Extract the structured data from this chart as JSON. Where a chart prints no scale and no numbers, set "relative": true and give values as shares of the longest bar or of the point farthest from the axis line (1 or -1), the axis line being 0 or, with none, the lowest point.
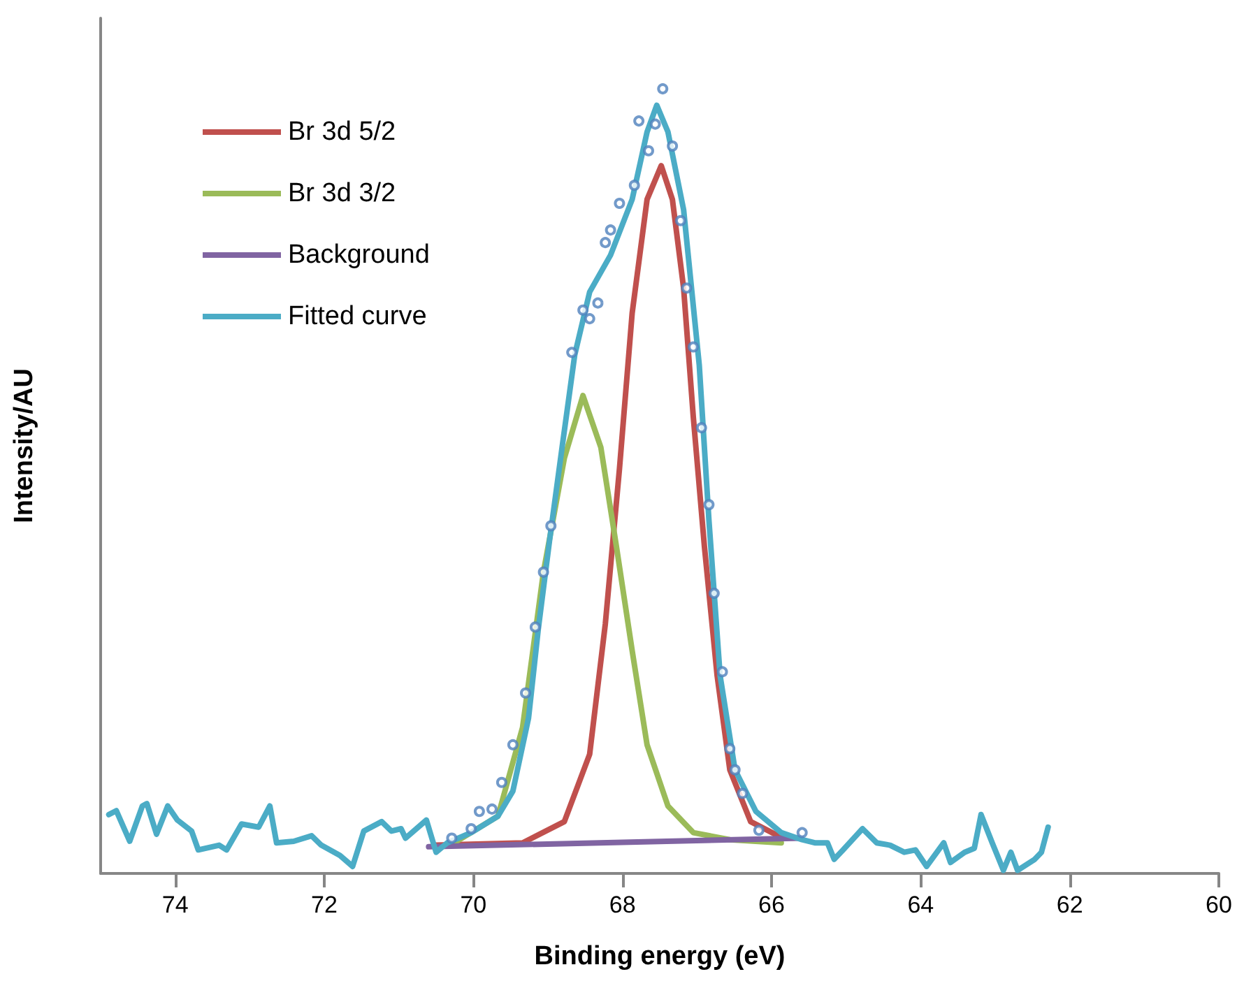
{
  "chart_data": {
    "type": "line",
    "relative": true,
    "xlabel": "Binding energy (eV)",
    "ylabel": "Intensity/AU",
    "xlim": [
      75,
      60
    ],
    "xticks": [
      74,
      72,
      70,
      68,
      66,
      64,
      62,
      60
    ],
    "grid": false,
    "legend": "top left",
    "marker": "none",
    "line_style": "solid",
    "series": [
      {
        "name": "Br 3d 5/2",
        "color": "#c0504d",
        "x": [
          70.5,
          69.34,
          68.78,
          68.44,
          68.23,
          68.04,
          67.87,
          67.67,
          67.48,
          67.33,
          67.18,
          67.05,
          66.9,
          66.73,
          66.56,
          66.28,
          65.87
        ],
        "values": [
          0.036,
          0.039,
          0.066,
          0.152,
          0.318,
          0.516,
          0.714,
          0.859,
          0.902,
          0.859,
          0.746,
          0.582,
          0.416,
          0.252,
          0.132,
          0.066,
          0.046
        ]
      },
      {
        "name": "Br 3d 3/2",
        "color": "#9bbb59",
        "x": [
          70.31,
          69.67,
          69.34,
          69.06,
          68.78,
          68.53,
          68.29,
          68.08,
          67.87,
          67.67,
          67.39,
          67.05,
          66.56,
          65.87
        ],
        "values": [
          0.036,
          0.073,
          0.186,
          0.384,
          0.529,
          0.609,
          0.543,
          0.416,
          0.284,
          0.164,
          0.086,
          0.052,
          0.043,
          0.039
        ]
      },
      {
        "name": "Background",
        "color": "#8064a2",
        "x": [
          70.6,
          65.6
        ],
        "values": [
          0.034,
          0.045
        ]
      },
      {
        "name": "Fitted curve",
        "color": "#4bacc6",
        "x": [
          74.89,
          74.79,
          74.61,
          74.44,
          74.38,
          74.25,
          74.1,
          73.97,
          73.78,
          73.69,
          73.41,
          73.31,
          73.11,
          72.88,
          72.73,
          72.64,
          72.41,
          72.17,
          72.04,
          71.79,
          71.62,
          71.47,
          71.23,
          71.1,
          70.97,
          70.91,
          70.63,
          70.5,
          70.35,
          70.03,
          69.67,
          69.47,
          69.26,
          69.13,
          68.98,
          68.81,
          68.64,
          68.44,
          68.16,
          67.87,
          67.67,
          67.54,
          67.39,
          67.18,
          66.97,
          66.84,
          66.69,
          66.49,
          66.21,
          65.87,
          65.59,
          65.42,
          65.25,
          65.16,
          65.04,
          64.78,
          64.59,
          64.41,
          64.22,
          64.07,
          63.92,
          63.69,
          63.6,
          63.41,
          63.28,
          63.19,
          63.04,
          62.89,
          62.79,
          62.7,
          62.47,
          62.38,
          62.29
        ],
        "values": [
          0.075,
          0.08,
          0.041,
          0.086,
          0.089,
          0.05,
          0.086,
          0.068,
          0.054,
          0.03,
          0.036,
          0.03,
          0.063,
          0.059,
          0.086,
          0.039,
          0.041,
          0.048,
          0.036,
          0.023,
          0.009,
          0.054,
          0.066,
          0.054,
          0.057,
          0.045,
          0.068,
          0.027,
          0.039,
          0.052,
          0.073,
          0.105,
          0.198,
          0.311,
          0.423,
          0.543,
          0.661,
          0.741,
          0.788,
          0.859,
          0.945,
          0.979,
          0.945,
          0.846,
          0.648,
          0.45,
          0.252,
          0.132,
          0.079,
          0.052,
          0.043,
          0.039,
          0.039,
          0.018,
          0.03,
          0.057,
          0.039,
          0.036,
          0.027,
          0.03,
          0.009,
          0.039,
          0.014,
          0.027,
          0.032,
          0.075,
          0.039,
          0.004,
          0.027,
          0.004,
          0.018,
          0.027,
          0.059
        ]
      },
      {
        "type": "scatter",
        "marker": "circle",
        "color": "#4f81bd",
        "x": [
          70.29,
          70.03,
          69.92,
          69.75,
          69.62,
          69.47,
          69.3,
          69.17,
          69.06,
          68.96,
          68.68,
          68.53,
          68.44,
          68.33,
          68.23,
          68.16,
          68.04,
          67.84,
          67.78,
          67.65,
          67.56,
          67.46,
          67.33,
          67.22,
          67.14,
          67.05,
          66.94,
          66.84,
          66.77,
          66.66,
          66.56,
          66.49,
          66.39,
          66.17,
          65.59
        ],
        "values": [
          0.045,
          0.057,
          0.079,
          0.082,
          0.116,
          0.164,
          0.23,
          0.314,
          0.384,
          0.443,
          0.664,
          0.718,
          0.707,
          0.727,
          0.804,
          0.82,
          0.854,
          0.877,
          0.959,
          0.921,
          0.955,
          1.0,
          0.927,
          0.832,
          0.746,
          0.671,
          0.568,
          0.47,
          0.357,
          0.257,
          0.159,
          0.132,
          0.102,
          0.055,
          0.052
        ]
      }
    ]
  }
}
